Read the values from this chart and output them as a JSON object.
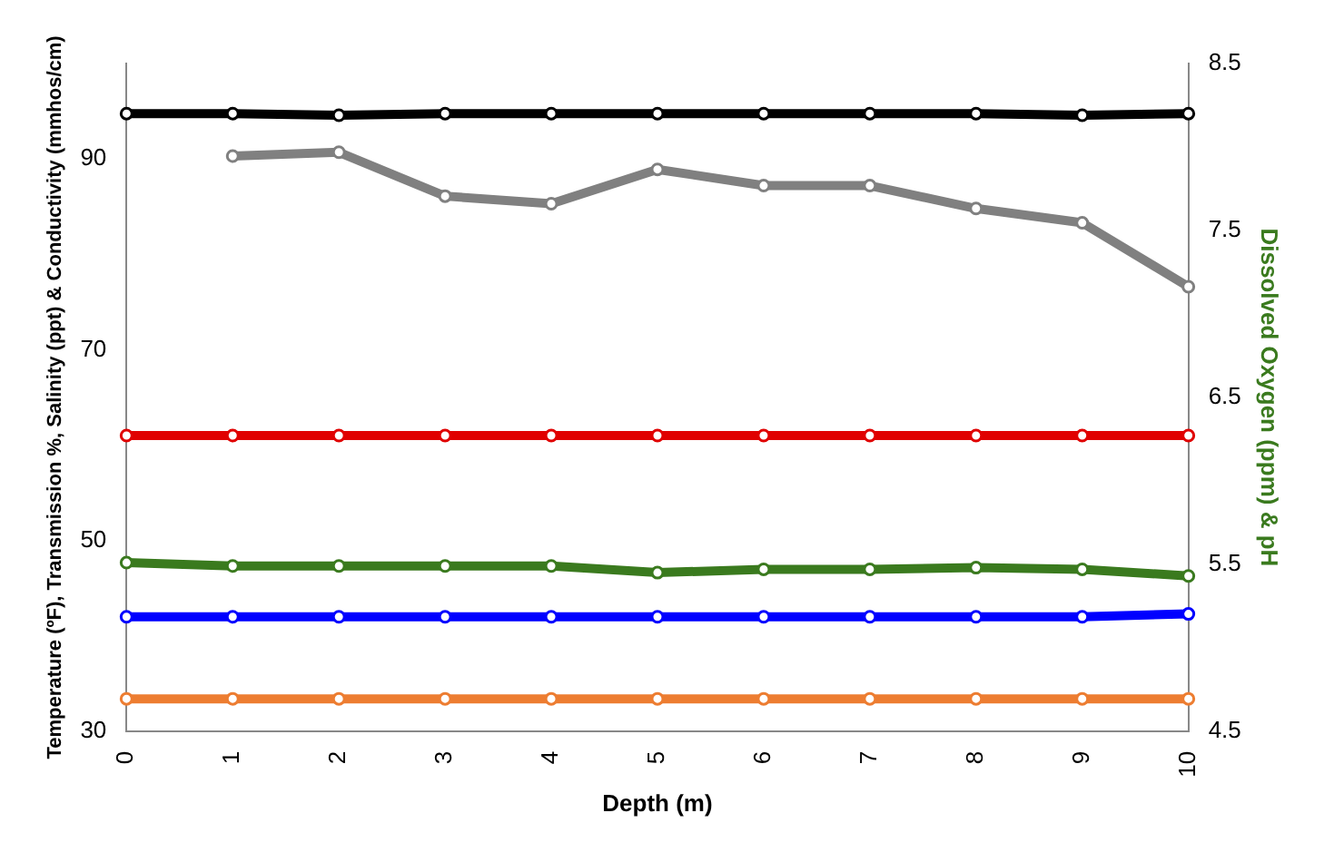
{
  "chart_data": {
    "type": "line",
    "xlabel": "Depth (m)",
    "ylabel": "Temperature (ºF), Transmission %, Salinity (ppt) & Conductivity (mmhos/cm)",
    "y2label": "Dissolved Oxygen (ppm) & pH",
    "categories": [
      "0",
      "1",
      "2",
      "3",
      "4",
      "5",
      "6",
      "7",
      "8",
      "9",
      "10"
    ],
    "series": [
      {
        "color": "#000000",
        "axis": "y2",
        "values": [
          8.2,
          8.2,
          8.19,
          8.2,
          8.2,
          8.2,
          8.2,
          8.2,
          8.2,
          8.19,
          8.2
        ]
      },
      {
        "color": "#808080",
        "values": [
          null,
          90.3,
          90.7,
          86.1,
          85.3,
          88.9,
          87.2,
          87.2,
          84.8,
          83.3,
          76.6
        ]
      },
      {
        "color": "#e00000",
        "values": [
          61,
          61,
          61,
          61,
          61,
          61,
          61,
          61,
          61,
          61,
          61
        ]
      },
      {
        "color": "#3a7a1e",
        "axis": "y2",
        "values": [
          5.51,
          5.49,
          5.49,
          5.49,
          5.49,
          5.45,
          5.47,
          5.47,
          5.48,
          5.47,
          5.43
        ]
      },
      {
        "color": "#0000ff",
        "values": [
          42,
          42,
          42,
          42,
          42,
          42,
          42,
          42,
          42,
          42,
          42.3
        ]
      },
      {
        "color": "#ed7d31",
        "values": [
          33.4,
          33.4,
          33.4,
          33.4,
          33.4,
          33.4,
          33.4,
          33.4,
          33.4,
          33.4,
          33.4
        ]
      }
    ],
    "ylim": [
      30,
      100
    ],
    "yticks": [
      30,
      50,
      70,
      90
    ],
    "y2lim": [
      4.5,
      8.5
    ],
    "y2ticks": [
      4.5,
      5.5,
      6.5,
      7.5,
      8.5
    ],
    "grid": false,
    "legend": false,
    "marker": "circle",
    "line_style": "solid"
  }
}
